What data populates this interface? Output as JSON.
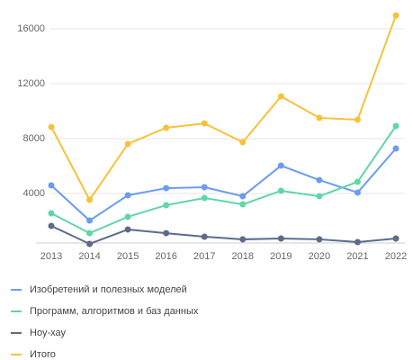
{
  "chart_data": {
    "type": "line",
    "x": [
      "2013",
      "2014",
      "2015",
      "2016",
      "2017",
      "2018",
      "2019",
      "2020",
      "2021",
      "2022"
    ],
    "series": [
      {
        "name": "Изобретений и полезных моделей",
        "color": "#6b9cf0",
        "values": [
          4590,
          2030,
          3870,
          4390,
          4460,
          3800,
          6030,
          4980,
          4070,
          7280
        ]
      },
      {
        "name": "Программ, алгоритмов и баз данных",
        "color": "#5ed6a8",
        "values": [
          2560,
          1110,
          2300,
          3150,
          3670,
          3210,
          4200,
          3800,
          4850,
          8920
        ]
      },
      {
        "name": "Ноу-хау",
        "color": "#5b6b8c",
        "values": [
          1640,
          330,
          1380,
          1110,
          850,
          660,
          720,
          660,
          460,
          720
        ]
      },
      {
        "name": "Итого",
        "color": "#f7c23a",
        "values": [
          8850,
          3540,
          7610,
          8790,
          9110,
          7740,
          11080,
          9510,
          9380,
          16980
        ]
      }
    ],
    "ylim": [
      0,
      17000
    ],
    "yticks": [
      4000,
      8000,
      12000,
      16000
    ],
    "grid": true
  }
}
